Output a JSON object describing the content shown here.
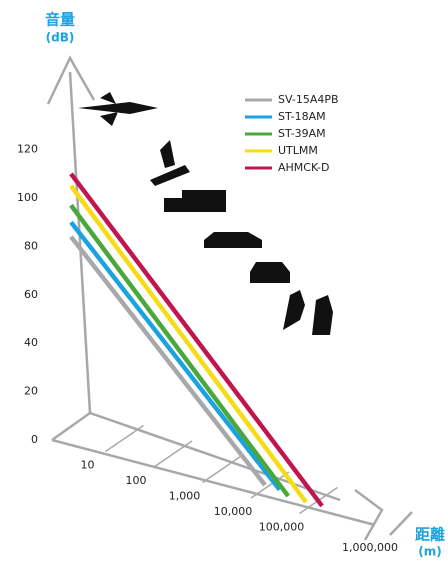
{
  "chart_data": {
    "type": "line",
    "y_title": "音量",
    "y_unit": "(dB)",
    "x_title": "距離",
    "x_unit": "(m)",
    "xscale": "log",
    "xlim": [
      1,
      10000000
    ],
    "ylim": [
      0,
      160
    ],
    "xticks": [
      10,
      100,
      {
        "value": 1000,
        "label": "1,000"
      },
      {
        "value": 10000,
        "label": "10,000"
      },
      {
        "value": 100000,
        "label": "100,000"
      },
      {
        "value": 1000000,
        "label": "1,000,000"
      }
    ],
    "yticks": [
      0,
      20,
      40,
      60,
      80,
      100,
      120
    ],
    "series": [
      {
        "name": "SV-15A4PB",
        "color": "#a6a8ab",
        "x": [
          1,
          10000
        ],
        "values": [
          84,
          7
        ]
      },
      {
        "name": "ST-18AM",
        "color": "#1aa3e0",
        "x": [
          1,
          20000
        ],
        "values": [
          90,
          7
        ]
      },
      {
        "name": "ST-39AM",
        "color": "#4aa83a",
        "x": [
          1,
          30000
        ],
        "values": [
          97,
          5.5
        ]
      },
      {
        "name": "UTLMM",
        "color": "#f5dc16",
        "x": [
          1,
          70000
        ],
        "values": [
          105,
          5.4
        ]
      },
      {
        "name": "AHMCK-D",
        "color": "#c0154f",
        "x": [
          1,
          150000
        ],
        "values": [
          110,
          5.9
        ]
      }
    ]
  }
}
